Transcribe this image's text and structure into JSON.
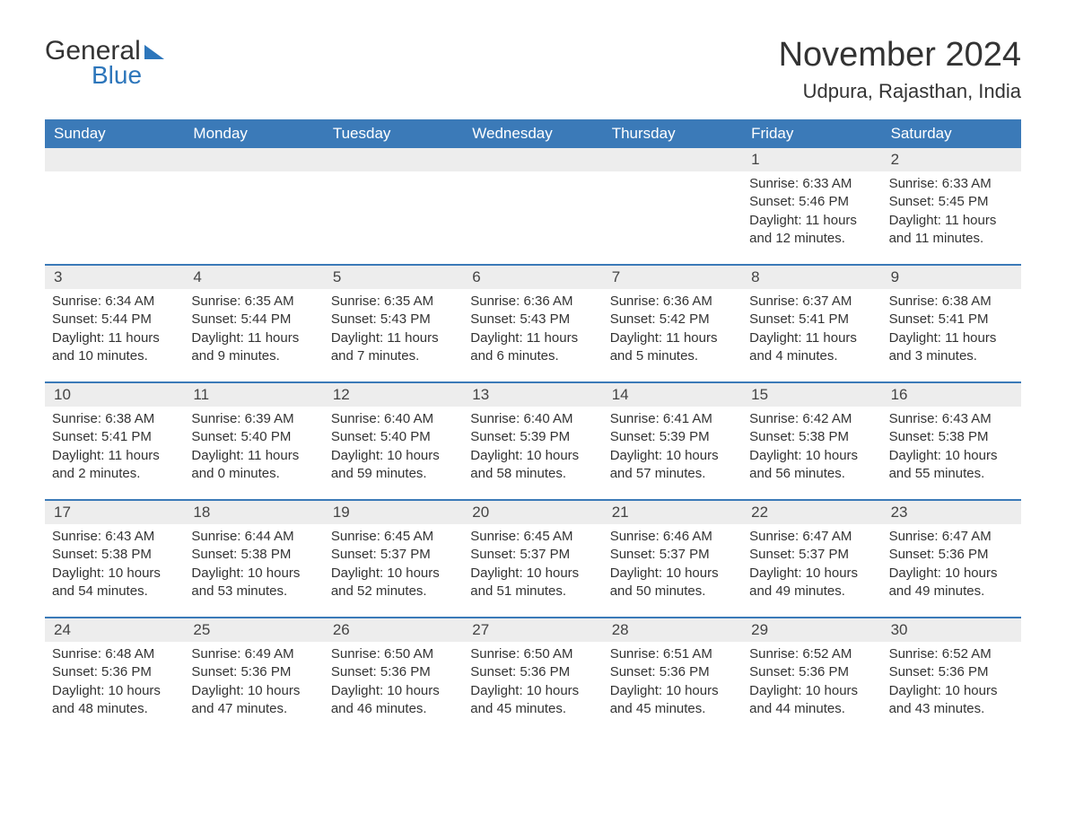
{
  "logo": {
    "text_general": "General",
    "text_blue": "Blue"
  },
  "title": "November 2024",
  "location": "Udpura, Rajasthan, India",
  "colors": {
    "header_bg": "#3b7ab8",
    "header_text": "#ffffff",
    "daynum_bg": "#ededed",
    "separator": "#3b7ab8",
    "text": "#333333",
    "logo_blue": "#2d76bb",
    "background": "#ffffff"
  },
  "layout": {
    "columns": 7,
    "font_family": "Arial",
    "title_fontsize": 38,
    "location_fontsize": 22,
    "header_fontsize": 17,
    "cell_fontsize": 15
  },
  "days_of_week": [
    "Sunday",
    "Monday",
    "Tuesday",
    "Wednesday",
    "Thursday",
    "Friday",
    "Saturday"
  ],
  "weeks": [
    {
      "nums": [
        "",
        "",
        "",
        "",
        "",
        "1",
        "2"
      ],
      "sunrise": [
        "",
        "",
        "",
        "",
        "",
        "Sunrise: 6:33 AM",
        "Sunrise: 6:33 AM"
      ],
      "sunset": [
        "",
        "",
        "",
        "",
        "",
        "Sunset: 5:46 PM",
        "Sunset: 5:45 PM"
      ],
      "day1": [
        "",
        "",
        "",
        "",
        "",
        "Daylight: 11 hours",
        "Daylight: 11 hours"
      ],
      "day2": [
        "",
        "",
        "",
        "",
        "",
        "and 12 minutes.",
        "and 11 minutes."
      ]
    },
    {
      "nums": [
        "3",
        "4",
        "5",
        "6",
        "7",
        "8",
        "9"
      ],
      "sunrise": [
        "Sunrise: 6:34 AM",
        "Sunrise: 6:35 AM",
        "Sunrise: 6:35 AM",
        "Sunrise: 6:36 AM",
        "Sunrise: 6:36 AM",
        "Sunrise: 6:37 AM",
        "Sunrise: 6:38 AM"
      ],
      "sunset": [
        "Sunset: 5:44 PM",
        "Sunset: 5:44 PM",
        "Sunset: 5:43 PM",
        "Sunset: 5:43 PM",
        "Sunset: 5:42 PM",
        "Sunset: 5:41 PM",
        "Sunset: 5:41 PM"
      ],
      "day1": [
        "Daylight: 11 hours",
        "Daylight: 11 hours",
        "Daylight: 11 hours",
        "Daylight: 11 hours",
        "Daylight: 11 hours",
        "Daylight: 11 hours",
        "Daylight: 11 hours"
      ],
      "day2": [
        "and 10 minutes.",
        "and 9 minutes.",
        "and 7 minutes.",
        "and 6 minutes.",
        "and 5 minutes.",
        "and 4 minutes.",
        "and 3 minutes."
      ]
    },
    {
      "nums": [
        "10",
        "11",
        "12",
        "13",
        "14",
        "15",
        "16"
      ],
      "sunrise": [
        "Sunrise: 6:38 AM",
        "Sunrise: 6:39 AM",
        "Sunrise: 6:40 AM",
        "Sunrise: 6:40 AM",
        "Sunrise: 6:41 AM",
        "Sunrise: 6:42 AM",
        "Sunrise: 6:43 AM"
      ],
      "sunset": [
        "Sunset: 5:41 PM",
        "Sunset: 5:40 PM",
        "Sunset: 5:40 PM",
        "Sunset: 5:39 PM",
        "Sunset: 5:39 PM",
        "Sunset: 5:38 PM",
        "Sunset: 5:38 PM"
      ],
      "day1": [
        "Daylight: 11 hours",
        "Daylight: 11 hours",
        "Daylight: 10 hours",
        "Daylight: 10 hours",
        "Daylight: 10 hours",
        "Daylight: 10 hours",
        "Daylight: 10 hours"
      ],
      "day2": [
        "and 2 minutes.",
        "and 0 minutes.",
        "and 59 minutes.",
        "and 58 minutes.",
        "and 57 minutes.",
        "and 56 minutes.",
        "and 55 minutes."
      ]
    },
    {
      "nums": [
        "17",
        "18",
        "19",
        "20",
        "21",
        "22",
        "23"
      ],
      "sunrise": [
        "Sunrise: 6:43 AM",
        "Sunrise: 6:44 AM",
        "Sunrise: 6:45 AM",
        "Sunrise: 6:45 AM",
        "Sunrise: 6:46 AM",
        "Sunrise: 6:47 AM",
        "Sunrise: 6:47 AM"
      ],
      "sunset": [
        "Sunset: 5:38 PM",
        "Sunset: 5:38 PM",
        "Sunset: 5:37 PM",
        "Sunset: 5:37 PM",
        "Sunset: 5:37 PM",
        "Sunset: 5:37 PM",
        "Sunset: 5:36 PM"
      ],
      "day1": [
        "Daylight: 10 hours",
        "Daylight: 10 hours",
        "Daylight: 10 hours",
        "Daylight: 10 hours",
        "Daylight: 10 hours",
        "Daylight: 10 hours",
        "Daylight: 10 hours"
      ],
      "day2": [
        "and 54 minutes.",
        "and 53 minutes.",
        "and 52 minutes.",
        "and 51 minutes.",
        "and 50 minutes.",
        "and 49 minutes.",
        "and 49 minutes."
      ]
    },
    {
      "nums": [
        "24",
        "25",
        "26",
        "27",
        "28",
        "29",
        "30"
      ],
      "sunrise": [
        "Sunrise: 6:48 AM",
        "Sunrise: 6:49 AM",
        "Sunrise: 6:50 AM",
        "Sunrise: 6:50 AM",
        "Sunrise: 6:51 AM",
        "Sunrise: 6:52 AM",
        "Sunrise: 6:52 AM"
      ],
      "sunset": [
        "Sunset: 5:36 PM",
        "Sunset: 5:36 PM",
        "Sunset: 5:36 PM",
        "Sunset: 5:36 PM",
        "Sunset: 5:36 PM",
        "Sunset: 5:36 PM",
        "Sunset: 5:36 PM"
      ],
      "day1": [
        "Daylight: 10 hours",
        "Daylight: 10 hours",
        "Daylight: 10 hours",
        "Daylight: 10 hours",
        "Daylight: 10 hours",
        "Daylight: 10 hours",
        "Daylight: 10 hours"
      ],
      "day2": [
        "and 48 minutes.",
        "and 47 minutes.",
        "and 46 minutes.",
        "and 45 minutes.",
        "and 45 minutes.",
        "and 44 minutes.",
        "and 43 minutes."
      ]
    }
  ]
}
